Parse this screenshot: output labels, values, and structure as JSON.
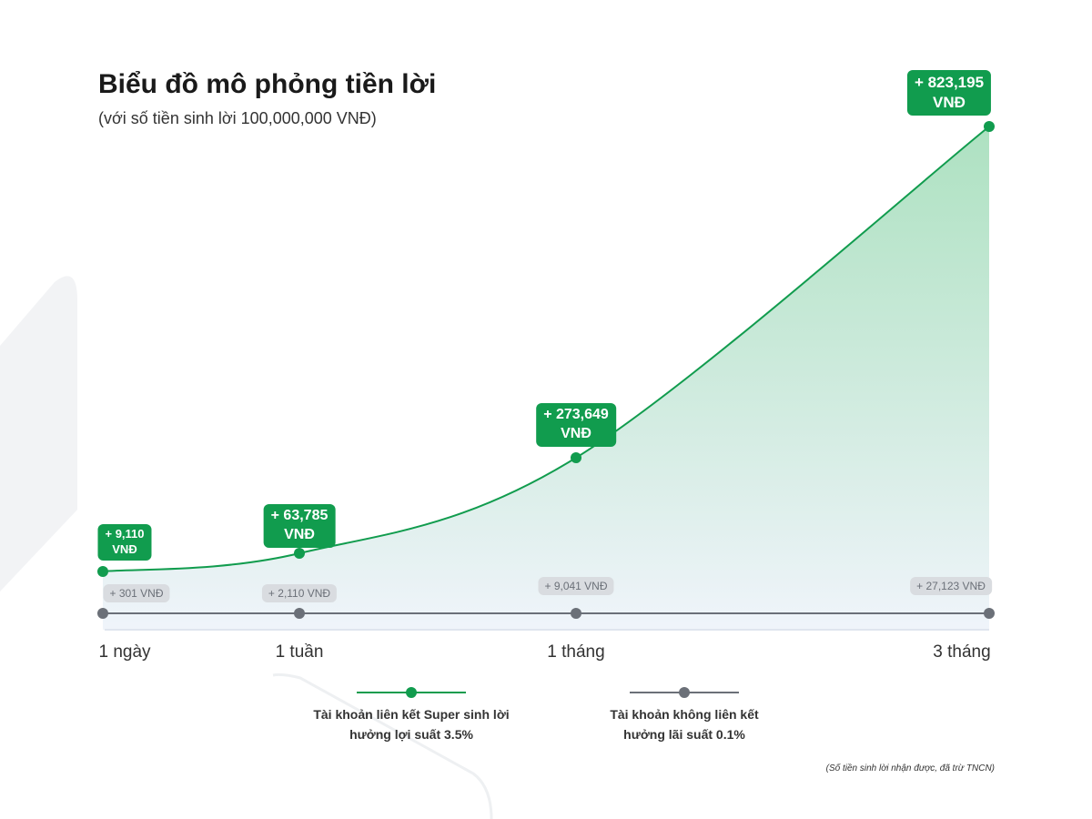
{
  "chart_data": {
    "type": "line",
    "title": "Biểu đồ mô phỏng tiền lời",
    "subtitle": "(với số tiền sinh lời 100,000,000 VNĐ)",
    "categories": [
      "1 ngày",
      "1 tuần",
      "1 tháng",
      "3 tháng"
    ],
    "series": [
      {
        "name": "Tài khoản liên kết Super sinh lời hưởng lợi suất 3.5%",
        "name_line1": "Tài khoản liên kết Super sinh lời",
        "name_line2": "hưởng lợi suất 3.5%",
        "color": "#119c4e",
        "values": [
          9110,
          63785,
          273649,
          823195
        ],
        "labels": [
          "+ 9,110",
          "+ 63,785",
          "+ 273,649",
          "+ 823,195"
        ]
      },
      {
        "name": "Tài khoản không liên kết hưởng lãi suất 0.1%",
        "name_line1": "Tài khoản không liên kết",
        "name_line2": "hưởng lãi suất 0.1%",
        "color": "#6b7078",
        "values": [
          301,
          2110,
          9041,
          27123
        ],
        "labels": [
          "+ 301 VNĐ",
          "+ 2,110 VNĐ",
          "+ 9,041 VNĐ",
          "+ 27,123 VNĐ"
        ]
      }
    ],
    "unit": "VNĐ",
    "legend": "bottom",
    "grid": false,
    "note": "(Số tiền sinh lời nhận được, đã trừ TNCN)"
  }
}
